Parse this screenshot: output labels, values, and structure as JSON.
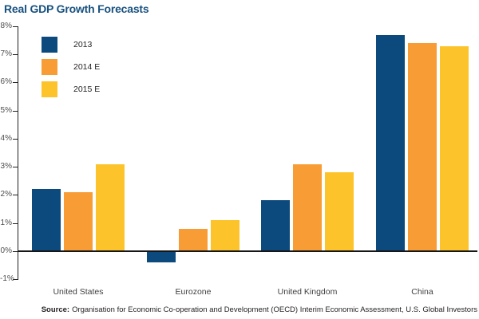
{
  "chart_data": {
    "type": "bar",
    "title": "Real GDP Growth Forecasts",
    "categories": [
      "United States",
      "Eurozone",
      "United Kingdom",
      "China"
    ],
    "series": [
      {
        "name": "2013",
        "color": "#0C4A7D",
        "values": [
          2.2,
          -0.4,
          1.8,
          7.7
        ]
      },
      {
        "name": "2014 E",
        "color": "#F89D35",
        "values": [
          2.1,
          0.8,
          3.1,
          7.4
        ]
      },
      {
        "name": "2015 E",
        "color": "#FDC32A",
        "values": [
          3.1,
          1.1,
          2.8,
          7.3
        ]
      }
    ],
    "xlabel": "",
    "ylabel": "",
    "ylim": [
      -1,
      8
    ],
    "ytick_step": 1,
    "ytick_format": "percent",
    "ytick_labels": [
      "8%",
      "7%",
      "6%",
      "5%",
      "4%",
      "3%",
      "2%",
      "1%",
      "0%",
      "-1%"
    ],
    "grid": false,
    "legend_position": "top-left"
  },
  "colors": {
    "title": "#17517F",
    "axis": "#231F20",
    "tick_text": "#4D4D4F",
    "category_text": "#414042"
  },
  "source": {
    "label": "Source:",
    "text": "Organisation for Economic Co-operation and Development (OECD) Interim Economic Assessment, U.S. Global Investors"
  }
}
